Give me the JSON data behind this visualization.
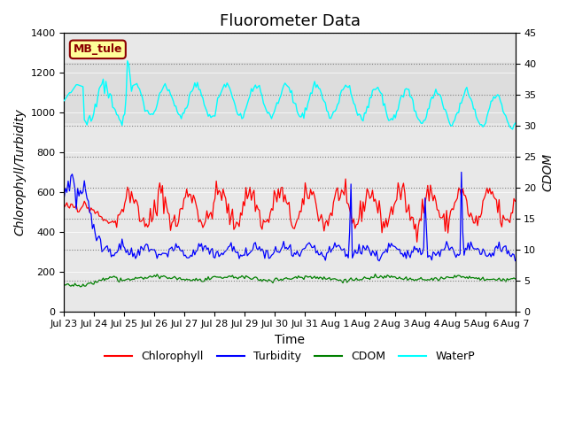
{
  "title": "Fluorometer Data",
  "xlabel": "Time",
  "ylabel_left": "Chlorophyll/Turbidity",
  "ylabel_right": "CDOM",
  "ylim_left": [
    0,
    1400
  ],
  "ylim_right": [
    0,
    45
  ],
  "background_color": "#ffffff",
  "plot_bg_color": "#e8e8e8",
  "annotation_text": "MB_tule",
  "annotation_bg": "#ffff99",
  "annotation_border": "#8b0000",
  "legend_entries": [
    "Chlorophyll",
    "Turbidity",
    "CDOM",
    "WaterP"
  ],
  "legend_colors": [
    "red",
    "blue",
    "green",
    "cyan"
  ],
  "x_tick_labels": [
    "Jul 23",
    "Jul 24",
    "Jul 25",
    "Jul 26",
    "Jul 27",
    "Jul 28",
    "Jul 29",
    "Jul 30",
    "Jul 31",
    "Aug 1",
    "Aug 2",
    "Aug 3",
    "Aug 4",
    "Aug 5",
    "Aug 6",
    "Aug 7"
  ],
  "n_points": 336,
  "title_fontsize": 13,
  "label_fontsize": 10,
  "tick_fontsize": 8
}
